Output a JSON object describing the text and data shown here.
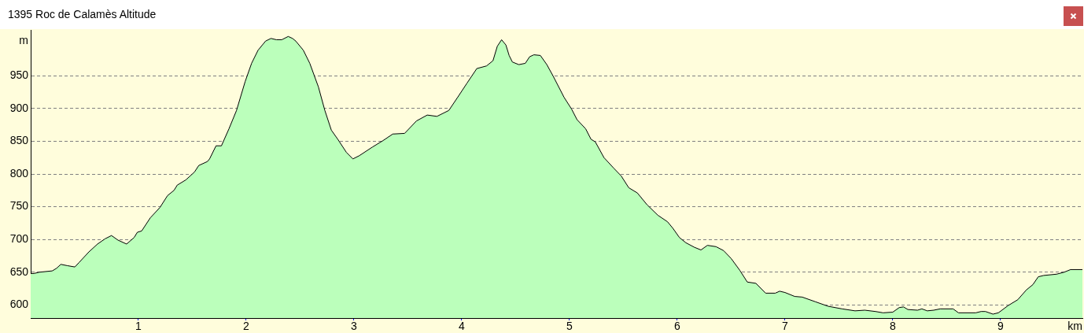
{
  "chart_data": {
    "type": "area",
    "title": "1395 Roc de Calamès Altitude",
    "xlabel": "km",
    "ylabel": "m",
    "x": [
      0,
      0.03,
      0.08,
      0.2,
      0.24,
      0.28,
      0.34,
      0.41,
      0.45,
      0.54,
      0.62,
      0.69,
      0.75,
      0.81,
      0.89,
      0.96,
      0.99,
      1.03,
      1.11,
      1.2,
      1.27,
      1.33,
      1.36,
      1.44,
      1.52,
      1.56,
      1.64,
      1.66,
      1.72,
      1.77,
      1.84,
      1.91,
      1.99,
      2.05,
      2.11,
      2.18,
      2.23,
      2.28,
      2.33,
      2.39,
      2.43,
      2.46,
      2.53,
      2.59,
      2.67,
      2.73,
      2.79,
      2.85,
      2.93,
      2.99,
      3.05,
      3.17,
      3.27,
      3.36,
      3.47,
      3.58,
      3.68,
      3.77,
      3.88,
      3.97,
      4.05,
      4.14,
      4.23,
      4.29,
      4.33,
      4.37,
      4.41,
      4.44,
      4.47,
      4.53,
      4.59,
      4.63,
      4.67,
      4.73,
      4.79,
      4.85,
      4.95,
      5.02,
      5.07,
      5.15,
      5.2,
      5.24,
      5.32,
      5.41,
      5.48,
      5.55,
      5.63,
      5.72,
      5.82,
      5.91,
      5.96,
      6.02,
      6.08,
      6.16,
      6.22,
      6.28,
      6.36,
      6.43,
      6.5,
      6.58,
      6.65,
      6.73,
      6.82,
      6.91,
      6.95,
      7,
      7.09,
      7.16,
      7.28,
      7.4,
      7.53,
      7.65,
      7.74,
      7.84,
      7.91,
      8,
      8.06,
      8.1,
      8.14,
      8.23,
      8.27,
      8.32,
      8.38,
      8.44,
      8.56,
      8.61,
      8.77,
      8.82,
      8.86,
      8.93,
      8.98,
      9.07,
      9.16,
      9.24,
      9.3,
      9.35,
      9.4,
      9.52,
      9.59,
      9.65,
      9.76
    ],
    "series": [
      {
        "color": "#bbffbb",
        "values": [
          648,
          648,
          650,
          652,
          656,
          662,
          660,
          658,
          665,
          681,
          693,
          701,
          706,
          699,
          693,
          703,
          711,
          713,
          733,
          749,
          767,
          775,
          783,
          791,
          803,
          813,
          819,
          823,
          843,
          843,
          869,
          897,
          941,
          969,
          989,
          1003,
          1007,
          1005,
          1005,
          1010,
          1007,
          1003,
          989,
          969,
          933,
          897,
          867,
          853,
          833,
          823,
          828,
          841,
          851,
          861,
          862,
          881,
          890,
          888,
          897,
          919,
          939,
          961,
          965,
          973,
          995,
          1005,
          997,
          981,
          971,
          967,
          969,
          979,
          982,
          981,
          967,
          949,
          917,
          899,
          883,
          869,
          853,
          849,
          825,
          809,
          797,
          779,
          771,
          753,
          737,
          727,
          717,
          703,
          695,
          688,
          684,
          691,
          689,
          683,
          671,
          653,
          635,
          633,
          618,
          618,
          621,
          619,
          613,
          612,
          605,
          598,
          594,
          591,
          592,
          590,
          588,
          589,
          596,
          597,
          593,
          592,
          594,
          591,
          592,
          594,
          594,
          588,
          588,
          590,
          590,
          586,
          588,
          599,
          608,
          623,
          631,
          643,
          645,
          647,
          650,
          654,
          654
        ]
      }
    ],
    "xlim": [
      0,
      9.76
    ],
    "xticks": [
      1,
      2,
      3,
      4,
      5,
      6,
      7,
      8,
      9
    ],
    "ylim": [
      580,
      1020
    ],
    "yticks": [
      600,
      650,
      700,
      750,
      800,
      850,
      900,
      950
    ],
    "grid": "y"
  }
}
